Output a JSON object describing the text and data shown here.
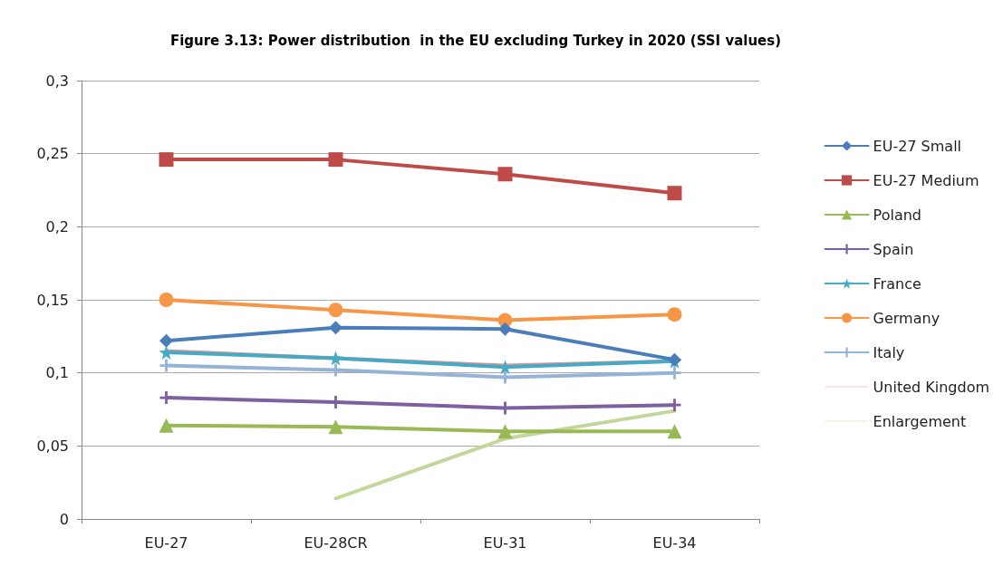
{
  "chart_data": {
    "type": "line",
    "title": "Figure 3.13: Power distribution  in the EU excluding Turkey in 2020 (SSI values)",
    "categories": [
      "EU-27",
      "EU-28CR",
      "EU-31",
      "EU-34"
    ],
    "series": [
      {
        "name": "EU-27 Small",
        "color": "#4a7ebb",
        "marker": "diamond",
        "values": [
          0.122,
          0.131,
          0.13,
          0.109
        ]
      },
      {
        "name": "EU-27 Medium",
        "color": "#be4b48",
        "marker": "square",
        "values": [
          0.246,
          0.246,
          0.236,
          0.223
        ]
      },
      {
        "name": "Poland",
        "color": "#98b954",
        "marker": "triangle",
        "values": [
          0.064,
          0.063,
          0.06,
          0.06
        ]
      },
      {
        "name": "Spain",
        "color": "#7d60a0",
        "marker": "cross",
        "values": [
          0.083,
          0.08,
          0.076,
          0.078
        ]
      },
      {
        "name": "France",
        "color": "#46aac5",
        "marker": "star",
        "values": [
          0.114,
          0.11,
          0.104,
          0.108
        ]
      },
      {
        "name": "Germany",
        "color": "#f79646",
        "marker": "circle",
        "values": [
          0.15,
          0.143,
          0.136,
          0.14
        ]
      },
      {
        "name": "Italy",
        "color": "#95b3d7",
        "marker": "cross",
        "values": [
          0.105,
          0.102,
          0.097,
          0.1
        ]
      },
      {
        "name": "United Kingdom",
        "color": "#d99694",
        "marker": "none",
        "values": [
          0.115,
          0.11,
          0.105,
          0.108
        ]
      },
      {
        "name": "Enlargement",
        "color": "#c3d69b",
        "marker": "none",
        "values": [
          null,
          0.014,
          0.055,
          0.074
        ]
      }
    ],
    "ylim": [
      0,
      0.3
    ],
    "yticks": [
      {
        "value": 0,
        "label": "0"
      },
      {
        "value": 0.05,
        "label": "0,05"
      },
      {
        "value": 0.1,
        "label": "0,1"
      },
      {
        "value": 0.15,
        "label": "0,15"
      },
      {
        "value": 0.2,
        "label": "0,2"
      },
      {
        "value": 0.25,
        "label": "0,25"
      },
      {
        "value": 0.3,
        "label": "0,3"
      }
    ],
    "grid": "y",
    "legend": "right"
  }
}
